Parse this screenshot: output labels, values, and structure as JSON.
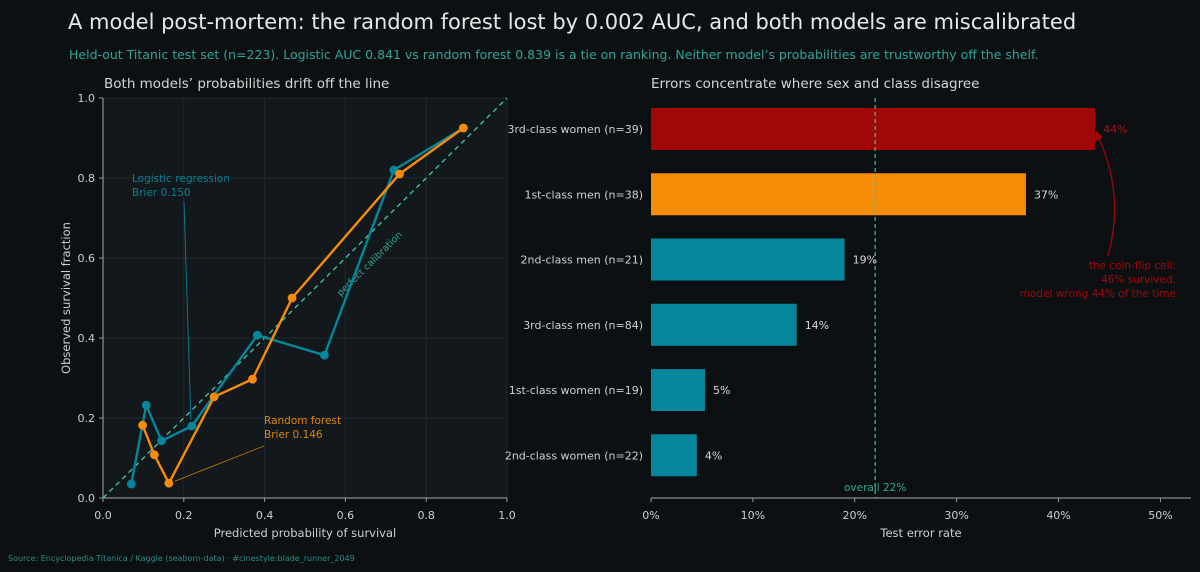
{
  "title": "A model post-mortem: the random forest lost by 0.002 AUC, and both models are miscalibrated",
  "subtitle": "Held-out Titanic test set (n=223). Logistic AUC 0.841 vs random forest 0.839 is a tie on ranking. Neither model’s probabilities are trustworthy off the shelf.",
  "source": "Source: Encyclopedia Titanica / Kaggle (seaborn-data)  ·  #cinestyle:blade_runner_2049",
  "colors": {
    "background": "#0c1013",
    "panel": "#12181b",
    "teal": "#05869a",
    "orange": "#f78c06",
    "red": "#a20707",
    "diagonal": "#3bbfa6",
    "text": "#cfcfcf"
  },
  "chart_data": [
    {
      "type": "line",
      "title": "Both models’ probabilities drift off the line",
      "xlabel": "Predicted probability of survival",
      "ylabel": "Observed survival fraction",
      "xlim": [
        0,
        1
      ],
      "ylim": [
        0,
        1
      ],
      "xticks": [
        "0.0",
        "0.2",
        "0.4",
        "0.6",
        "0.8",
        "1.0"
      ],
      "yticks": [
        "0.0",
        "0.2",
        "0.4",
        "0.6",
        "0.8",
        "1.0"
      ],
      "grid": true,
      "reference_line": {
        "label": "perfect calibration",
        "x": [
          0,
          1
        ],
        "y": [
          0,
          1
        ]
      },
      "series": [
        {
          "name": "Logistic regression",
          "note": "Brier 0.150",
          "color": "#05869a",
          "x": [
            0.07,
            0.107,
            0.145,
            0.22,
            0.382,
            0.548,
            0.72,
            0.892
          ],
          "y": [
            0.035,
            0.232,
            0.143,
            0.18,
            0.407,
            0.357,
            0.82,
            0.925
          ]
        },
        {
          "name": "Random forest",
          "note": "Brier 0.146",
          "color": "#f78c06",
          "x": [
            0.098,
            0.127,
            0.163,
            0.275,
            0.37,
            0.468,
            0.734,
            0.892
          ],
          "y": [
            0.182,
            0.108,
            0.037,
            0.253,
            0.297,
            0.5,
            0.81,
            0.925
          ]
        }
      ]
    },
    {
      "type": "bar",
      "orientation": "horizontal",
      "title": "Errors concentrate where sex and class disagree",
      "xlabel": "Test error rate",
      "ylabel": "",
      "xlim": [
        0,
        0.53
      ],
      "xticks": [
        "0%",
        "10%",
        "20%",
        "30%",
        "40%",
        "50%"
      ],
      "categories": [
        "3rd-class women  (n=39)",
        "1st-class men  (n=38)",
        "2nd-class men  (n=21)",
        "3rd-class men  (n=84)",
        "1st-class women  (n=19)",
        "2nd-class women  (n=22)"
      ],
      "values": [
        0.436,
        0.368,
        0.19,
        0.143,
        0.053,
        0.045
      ],
      "value_labels": [
        "44%",
        "37%",
        "19%",
        "14%",
        "5%",
        "4%"
      ],
      "bar_colors": [
        "#a20707",
        "#f78c06",
        "#05869a",
        "#05869a",
        "#05869a",
        "#05869a"
      ],
      "reference_line": {
        "label": "overall 22%",
        "value": 0.22
      },
      "annotation": [
        "the coin-flip cell:",
        "46% survived,",
        "model wrong 44% of the time"
      ]
    }
  ]
}
